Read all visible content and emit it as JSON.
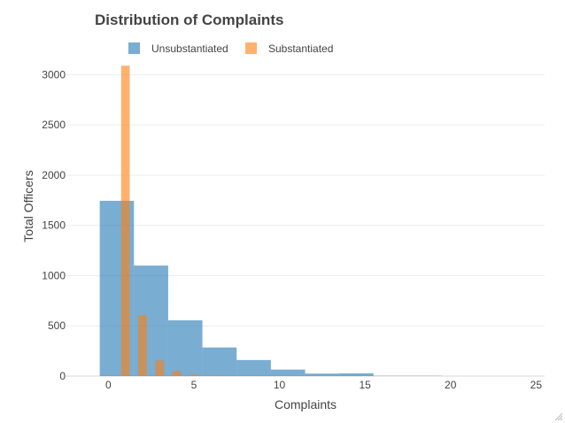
{
  "chart_data": {
    "type": "bar",
    "title": "Distribution of Complaints",
    "xlabel": "Complaints",
    "ylabel": "Total Officers",
    "xlim": [
      -2.5,
      25.5
    ],
    "ylim": [
      0,
      3180
    ],
    "xticks": [
      0,
      5,
      10,
      15,
      20,
      25
    ],
    "yticks": [
      0,
      500,
      1000,
      1500,
      2000,
      2500,
      3000
    ],
    "grid": true,
    "legend_position": "top",
    "series": [
      {
        "name": "Unsubstantiated",
        "color": "#1f77b4",
        "opacity": 0.6,
        "bins": [
          {
            "start": -0.5,
            "end": 1.5,
            "value": 1745
          },
          {
            "start": 1.5,
            "end": 3.5,
            "value": 1100
          },
          {
            "start": 3.5,
            "end": 5.5,
            "value": 555
          },
          {
            "start": 5.5,
            "end": 7.5,
            "value": 285
          },
          {
            "start": 7.5,
            "end": 9.5,
            "value": 160
          },
          {
            "start": 9.5,
            "end": 11.5,
            "value": 65
          },
          {
            "start": 11.5,
            "end": 13.5,
            "value": 25
          },
          {
            "start": 13.5,
            "end": 15.5,
            "value": 28
          },
          {
            "start": 15.5,
            "end": 17.5,
            "value": 3
          },
          {
            "start": 17.5,
            "end": 19.5,
            "value": 3
          }
        ]
      },
      {
        "name": "Substantiated",
        "color": "#ff7f0e",
        "opacity": 0.6,
        "bins": [
          {
            "start": 0.75,
            "end": 1.25,
            "value": 3090
          },
          {
            "start": 1.75,
            "end": 2.25,
            "value": 605
          },
          {
            "start": 2.75,
            "end": 3.25,
            "value": 155
          },
          {
            "start": 3.75,
            "end": 4.25,
            "value": 50
          },
          {
            "start": 4.75,
            "end": 5.25,
            "value": 15
          },
          {
            "start": 5.75,
            "end": 6.25,
            "value": 5
          },
          {
            "start": 6.75,
            "end": 7.25,
            "value": 2
          }
        ]
      }
    ]
  }
}
